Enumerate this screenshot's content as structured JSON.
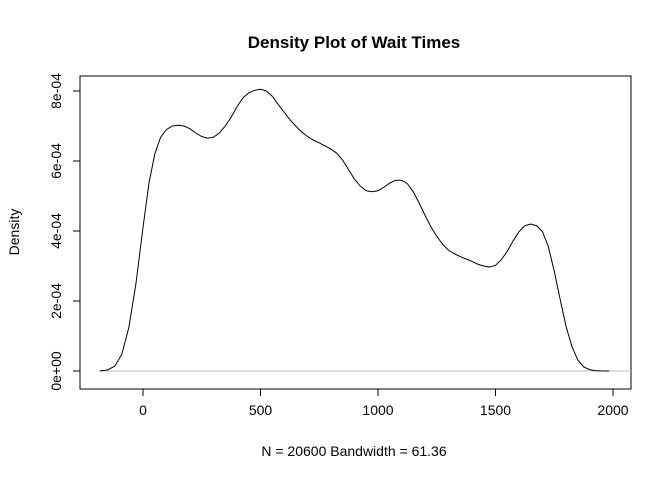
{
  "chart_data": {
    "type": "line",
    "title": "Density Plot of Wait Times",
    "xlabel": "N = 20600   Bandwidth = 61.36",
    "ylabel": "Density",
    "xlim": [
      -200,
      2000
    ],
    "ylim": [
      0,
      0.00083
    ],
    "x_ticks": [
      0,
      500,
      1000,
      1500,
      2000
    ],
    "x_tick_labels": [
      "0",
      "500",
      "1000",
      "1500",
      "2000"
    ],
    "y_ticks": [
      0,
      0.0002,
      0.0004,
      0.0006,
      0.0008
    ],
    "y_tick_labels": [
      "0e+00",
      "2e-04",
      "4e-04",
      "6e-04",
      "8e-04"
    ],
    "baseline_color": "#bebebe",
    "line_color": "#000000",
    "series": [
      {
        "x": [
          -184,
          -150,
          -120,
          -90,
          -60,
          -30,
          0,
          25,
          50,
          75,
          100,
          125,
          150,
          175,
          200,
          225,
          250,
          275,
          300,
          325,
          350,
          375,
          400,
          425,
          450,
          475,
          500,
          525,
          550,
          575,
          600,
          625,
          650,
          675,
          700,
          725,
          750,
          775,
          800,
          825,
          850,
          875,
          900,
          925,
          950,
          975,
          1000,
          1025,
          1050,
          1075,
          1100,
          1125,
          1150,
          1175,
          1200,
          1225,
          1250,
          1275,
          1300,
          1325,
          1350,
          1375,
          1400,
          1425,
          1450,
          1475,
          1500,
          1525,
          1550,
          1575,
          1600,
          1625,
          1650,
          1675,
          1700,
          1725,
          1750,
          1775,
          1800,
          1825,
          1850,
          1875,
          1900,
          1925,
          1950,
          1975,
          1984
        ],
        "y": [
          5e-07,
          3e-06,
          1.4e-05,
          4.8e-05,
          0.000125,
          0.00025,
          0.00041,
          0.000535,
          0.00062,
          0.000668,
          0.00069,
          0.0007,
          0.000702,
          0.0007,
          0.000692,
          0.00068,
          0.00067,
          0.000665,
          0.000668,
          0.00068,
          0.0007,
          0.000725,
          0.000755,
          0.00078,
          0.000795,
          0.000802,
          0.000805,
          0.0008,
          0.000785,
          0.000762,
          0.00074,
          0.000718,
          0.0007,
          0.000683,
          0.00067,
          0.00066,
          0.000652,
          0.000643,
          0.000634,
          0.000622,
          0.000602,
          0.000575,
          0.000548,
          0.000528,
          0.000515,
          0.000512,
          0.000515,
          0.000525,
          0.000537,
          0.000545,
          0.000545,
          0.000535,
          0.000512,
          0.00048,
          0.000445,
          0.000412,
          0.000385,
          0.000362,
          0.000345,
          0.000335,
          0.000327,
          0.00032,
          0.000313,
          0.000305,
          0.0003,
          0.000297,
          0.000302,
          0.000318,
          0.000342,
          0.000372,
          0.000398,
          0.000415,
          0.00042,
          0.000415,
          0.000398,
          0.000355,
          0.000285,
          0.000205,
          0.000128,
          7e-05,
          3.2e-05,
          1.2e-05,
          4e-06,
          1e-06,
          3e-07,
          5e-08,
          0.0
        ]
      }
    ]
  }
}
